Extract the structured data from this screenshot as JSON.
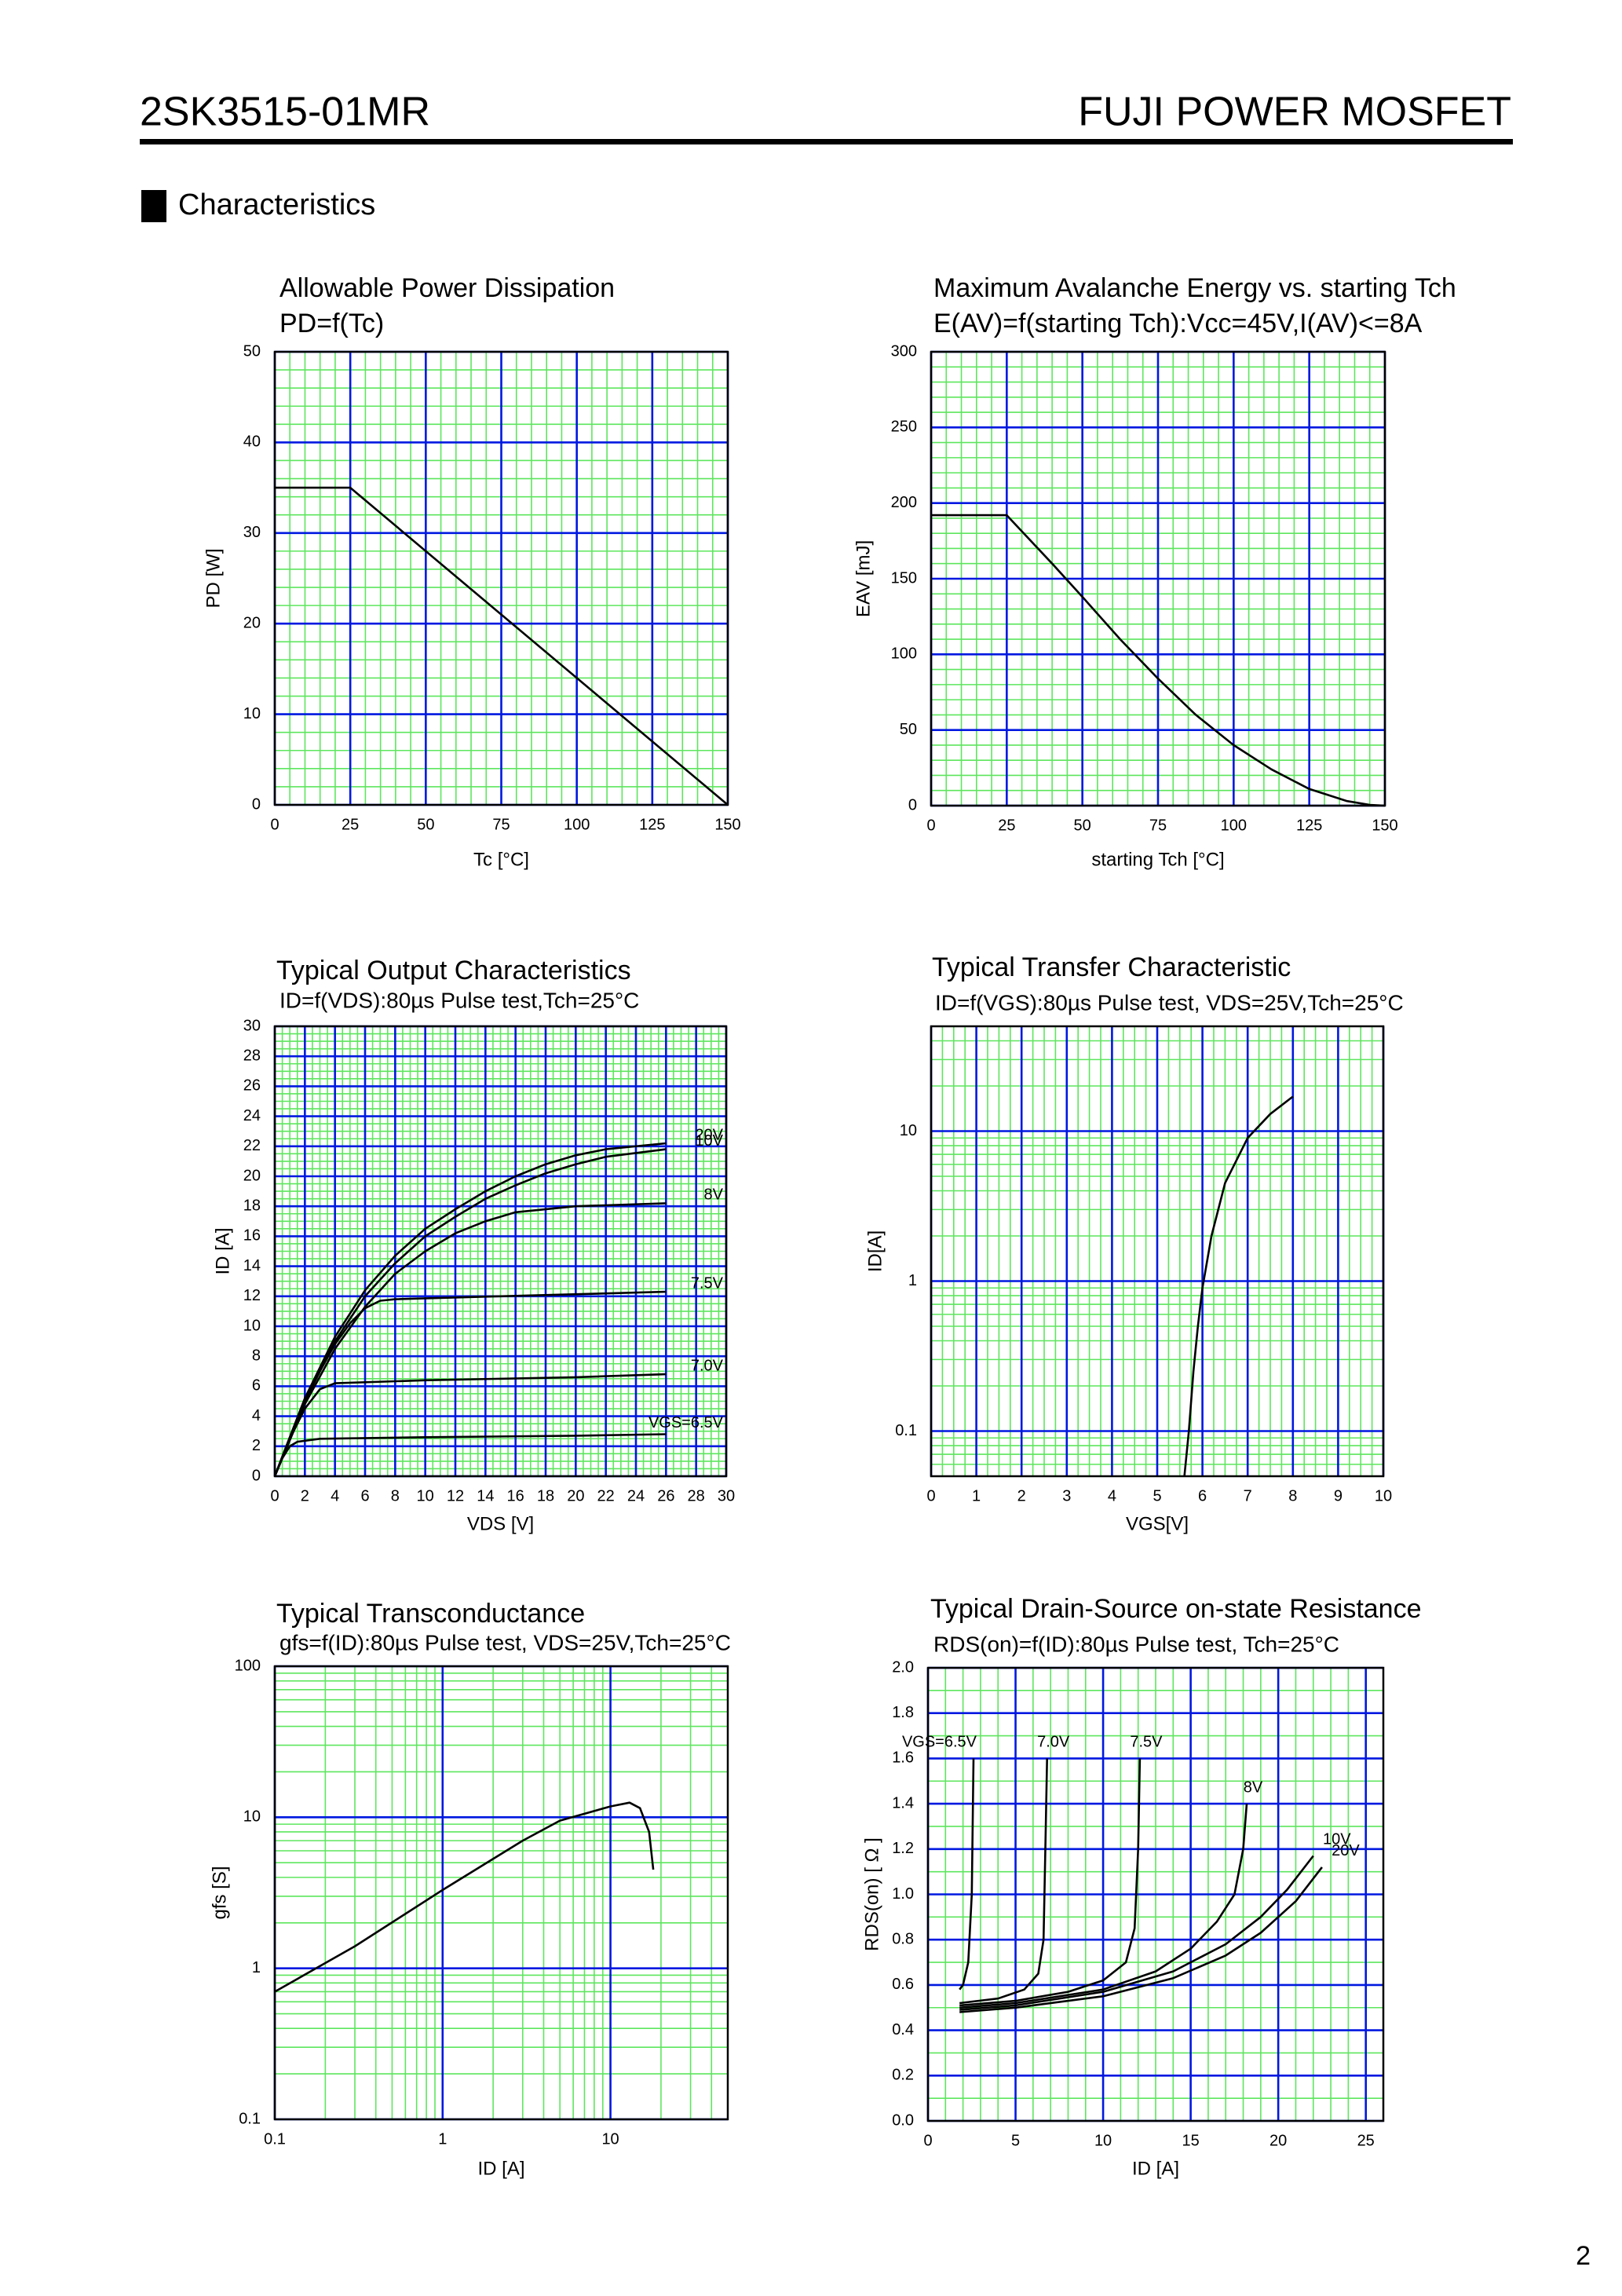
{
  "header": {
    "part": "2SK3515-01MR",
    "brand": "FUJI POWER MOSFET"
  },
  "section": "Characteristics",
  "page_number": 2,
  "chart_data": [
    {
      "type": "line",
      "title": "Allowable Power Dissipation",
      "subtitle": "PD=f(Tc)",
      "xlabel": "Tc [°C]",
      "ylabel": "PD [W]",
      "xlim": [
        0,
        150
      ],
      "xticks": [
        0,
        25,
        50,
        75,
        100,
        125,
        150
      ],
      "ylim": [
        0,
        50
      ],
      "yticks": [
        0,
        10,
        20,
        30,
        40,
        50
      ],
      "xminor": 5,
      "yminor": 2,
      "grid_color": "#5de65d",
      "major_grid_color": "#0018e0",
      "series": [
        {
          "color": "#000000",
          "x": [
            0,
            25,
            150
          ],
          "values": [
            35,
            35,
            0
          ]
        }
      ]
    },
    {
      "type": "line",
      "title": "Maximum Avalanche Energy vs. starting Tch",
      "subtitle": "E(AV)=f(starting Tch):Vcc=45V,I(AV)<=8A",
      "xlabel": "starting Tch [°C]",
      "ylabel": "EAV [mJ]",
      "xlim": [
        0,
        150
      ],
      "xticks": [
        0,
        25,
        50,
        75,
        100,
        125,
        150
      ],
      "ylim": [
        0,
        300
      ],
      "yticks": [
        0,
        50,
        100,
        150,
        200,
        250,
        300
      ],
      "xminor": 5,
      "yminor": 10,
      "grid_color": "#5de65d",
      "major_grid_color": "#0018e0",
      "series": [
        {
          "color": "#000000",
          "x": [
            0,
            25,
            40,
            50,
            62.5,
            75,
            87.5,
            100,
            112.5,
            125,
            137.5,
            145,
            150
          ],
          "values": [
            192,
            192,
            160,
            138,
            110,
            84,
            60,
            40,
            24,
            11,
            3,
            0.5,
            0
          ]
        }
      ]
    },
    {
      "type": "line",
      "title": "Typical Output Characteristics",
      "subtitle": "ID=f(VDS):80µs Pulse test,Tch=25°C",
      "xlabel": "VDS [V]",
      "ylabel": "ID [A]",
      "xlim": [
        0,
        30
      ],
      "xticks": [
        0,
        2,
        4,
        6,
        8,
        10,
        12,
        14,
        16,
        18,
        20,
        22,
        24,
        26,
        28,
        30
      ],
      "ylim": [
        0,
        30
      ],
      "yticks": [
        0,
        2,
        4,
        6,
        8,
        10,
        12,
        14,
        16,
        18,
        20,
        22,
        24,
        26,
        28,
        30
      ],
      "xminor": 0.5,
      "yminor": 0.5,
      "grid_color": "#5de65d",
      "major_grid_color": "#0018e0",
      "series": [
        {
          "name": "20V",
          "color": "#000000",
          "x": [
            0,
            2,
            4,
            6,
            8,
            10,
            12,
            14,
            16,
            18,
            20,
            22,
            26
          ],
          "values": [
            0,
            5.2,
            9.3,
            12.4,
            14.7,
            16.5,
            17.8,
            19,
            20,
            20.8,
            21.4,
            21.8,
            22.2
          ]
        },
        {
          "name": "10V",
          "color": "#000000",
          "x": [
            0,
            2,
            4,
            6,
            8,
            10,
            12,
            14,
            16,
            18,
            20,
            22,
            26
          ],
          "values": [
            0,
            5,
            9,
            12,
            14.2,
            16,
            17.3,
            18.5,
            19.4,
            20.2,
            20.8,
            21.3,
            21.8
          ]
        },
        {
          "name": "8V",
          "color": "#000000",
          "x": [
            0,
            2,
            4,
            6,
            8,
            10,
            12,
            14,
            16,
            20,
            26
          ],
          "values": [
            0,
            4.8,
            8.5,
            11.3,
            13.5,
            15,
            16.2,
            17,
            17.6,
            18,
            18.2
          ]
        },
        {
          "name": "7.5V",
          "color": "#000000",
          "x": [
            0,
            1,
            2,
            3,
            4,
            5,
            6,
            7,
            8,
            15,
            26
          ],
          "values": [
            0,
            2.6,
            5,
            7,
            8.8,
            10.2,
            11.2,
            11.7,
            11.8,
            12,
            12.3
          ]
        },
        {
          "name": "7.0V",
          "color": "#000000",
          "x": [
            0,
            1,
            2,
            3,
            4,
            10,
            20,
            26
          ],
          "values": [
            0,
            2.5,
            4.5,
            5.8,
            6.2,
            6.4,
            6.6,
            6.8
          ]
        },
        {
          "name": "VGS=6.5V",
          "color": "#000000",
          "x": [
            0,
            0.5,
            1,
            1.5,
            3,
            10,
            20,
            26
          ],
          "values": [
            0,
            1.2,
            2,
            2.3,
            2.5,
            2.6,
            2.7,
            2.8
          ]
        }
      ]
    },
    {
      "type": "line",
      "title": "Typical Transfer Characteristic",
      "subtitle": "ID=f(VGS):80µs Pulse test, VDS=25V,Tch=25°C",
      "xlabel": "VGS[V]",
      "ylabel": "ID[A]",
      "xlim": [
        0,
        10
      ],
      "xticks": [
        0,
        1,
        2,
        3,
        4,
        5,
        6,
        7,
        8,
        9,
        10
      ],
      "ylim": [
        0.05,
        50
      ],
      "yticks": [
        0.1,
        1,
        10
      ],
      "yscale": "log",
      "xminor": 0.25,
      "grid_color": "#5de65d",
      "major_grid_color": "#0018e0",
      "series": [
        {
          "color": "#000000",
          "x": [
            5.6,
            5.7,
            5.8,
            5.9,
            6,
            6.2,
            6.5,
            7,
            7.5,
            8
          ],
          "values": [
            0.05,
            0.1,
            0.25,
            0.5,
            0.9,
            2,
            4.5,
            9,
            13,
            17
          ]
        }
      ]
    },
    {
      "type": "line",
      "title": "Typical Transconductance",
      "subtitle": "gfs=f(ID):80µs Pulse test, VDS=25V,Tch=25°C",
      "xlabel": "ID [A]",
      "ylabel": "gfs [S]",
      "xlim": [
        0.1,
        50
      ],
      "xticks": [
        0.1,
        1,
        10
      ],
      "xscale": "log",
      "ylim": [
        0.1,
        100
      ],
      "yticks": [
        0.1,
        1,
        10,
        100
      ],
      "yscale": "log",
      "grid_color": "#5de65d",
      "major_grid_color": "#0018e0",
      "series": [
        {
          "color": "#000000",
          "x": [
            0.1,
            0.3,
            1,
            3,
            5,
            10,
            13,
            15,
            17,
            18
          ],
          "values": [
            0.7,
            1.4,
            3.3,
            7,
            9.5,
            11.8,
            12.5,
            11.5,
            8,
            4.5
          ]
        }
      ]
    },
    {
      "type": "line",
      "title": "Typical Drain-Source on-state Resistance",
      "subtitle": "RDS(on)=f(ID):80µs Pulse test, Tch=25°C",
      "xlabel": "ID [A]",
      "ylabel": "RDS(on) [ Ω ]",
      "xlim": [
        0,
        26
      ],
      "xticks": [
        0,
        5,
        10,
        15,
        20,
        25
      ],
      "ylim": [
        0,
        2
      ],
      "yticks": [
        {
          "value": 0,
          "label": "0.0"
        },
        0.2,
        0.4,
        0.6,
        0.8,
        {
          "value": 1,
          "label": "1.0"
        },
        1.2,
        1.4,
        1.6,
        1.8,
        {
          "value": 2,
          "label": "2.0"
        }
      ],
      "xminor": 1,
      "yminor": 0.1,
      "grid_color": "#5de65d",
      "major_grid_color": "#0018e0",
      "series": [
        {
          "name": "VGS=6.5V",
          "color": "#000000",
          "x": [
            1.8,
            2,
            2.3,
            2.5,
            2.6
          ],
          "values": [
            0.58,
            0.6,
            0.7,
            1,
            1.6
          ]
        },
        {
          "name": "7.0V",
          "color": "#000000",
          "x": [
            1.8,
            4,
            5.5,
            6.3,
            6.6,
            6.7,
            6.8
          ],
          "values": [
            0.52,
            0.54,
            0.58,
            0.65,
            0.8,
            1.2,
            1.6
          ]
        },
        {
          "name": "7.5V",
          "color": "#000000",
          "x": [
            1.8,
            5,
            8,
            10,
            11.3,
            11.8,
            12,
            12.1
          ],
          "values": [
            0.51,
            0.53,
            0.57,
            0.62,
            0.7,
            0.85,
            1.2,
            1.6
          ]
        },
        {
          "name": "8V",
          "color": "#000000",
          "x": [
            1.8,
            5,
            10,
            13,
            15,
            16.5,
            17.5,
            18,
            18.2
          ],
          "values": [
            0.5,
            0.52,
            0.58,
            0.66,
            0.76,
            0.88,
            1,
            1.2,
            1.4
          ]
        },
        {
          "name": "10V",
          "color": "#000000",
          "x": [
            1.8,
            5,
            10,
            14,
            17,
            19,
            20.5,
            22
          ],
          "values": [
            0.49,
            0.51,
            0.57,
            0.66,
            0.78,
            0.9,
            1.02,
            1.17
          ]
        },
        {
          "name": "20V",
          "color": "#000000",
          "x": [
            1.8,
            5,
            10,
            14,
            17,
            19,
            21,
            22.5
          ],
          "values": [
            0.48,
            0.5,
            0.55,
            0.63,
            0.73,
            0.83,
            0.97,
            1.12
          ]
        }
      ]
    }
  ]
}
